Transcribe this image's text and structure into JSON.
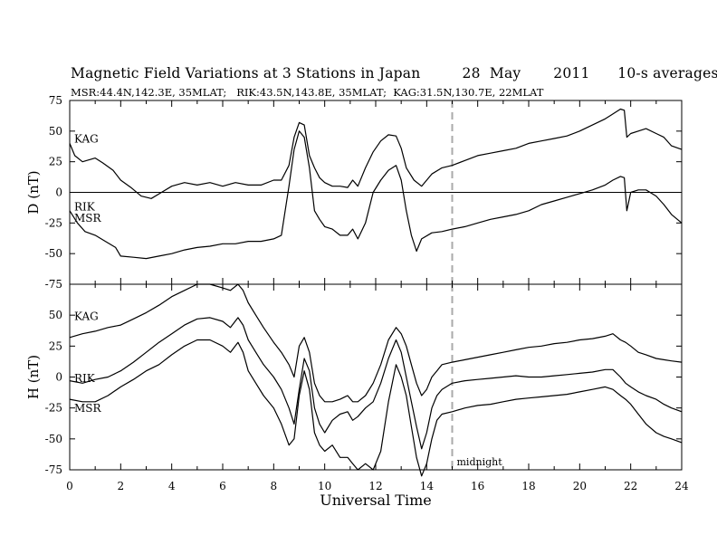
{
  "header": {
    "title": "Magnetic Field Variations at 3 Stations in Japan         28  May       2011      10-s averages",
    "subtitle": "MSR:44.4N,142.3E, 35MLAT;   RIK:43.5N,143.8E, 35MLAT;  KAG:31.5N,130.7E, 22MLAT"
  },
  "annotations": {
    "midnight": "midnight"
  },
  "chart_data": [
    {
      "type": "line",
      "panel": "D",
      "ylabel": "D (nT)",
      "xlabel": "",
      "xlim": [
        0,
        24
      ],
      "ylim": [
        -75,
        75
      ],
      "yticks": [
        75,
        50,
        25,
        0,
        -25,
        -50,
        -75
      ],
      "zero_line": true,
      "vertical_marker": {
        "x": 15,
        "style": "dashed",
        "color": "#aaaaaa",
        "label": "midnight"
      },
      "series": [
        {
          "name": "KAG",
          "x": [
            0,
            0.2,
            0.5,
            1,
            1.3,
            1.7,
            2,
            2.4,
            2.8,
            3.2,
            3.6,
            4,
            4.5,
            5,
            5.5,
            6,
            6.5,
            7,
            7.5,
            8,
            8.3,
            8.6,
            8.8,
            9,
            9.2,
            9.4,
            9.6,
            9.8,
            10,
            10.3,
            10.6,
            10.9,
            11.1,
            11.3,
            11.6,
            11.9,
            12.2,
            12.5,
            12.8,
            13,
            13.2,
            13.5,
            13.8,
            14.2,
            14.6,
            15,
            15.5,
            16,
            16.5,
            17,
            17.5,
            18,
            18.5,
            19,
            19.5,
            20,
            20.5,
            21,
            21.3,
            21.6,
            21.75,
            21.85,
            22,
            22.3,
            22.6,
            23,
            23.3,
            23.6,
            24
          ],
          "y": [
            40,
            30,
            25,
            28,
            24,
            18,
            10,
            4,
            -3,
            -5,
            0,
            5,
            8,
            6,
            8,
            5,
            8,
            6,
            6,
            10,
            10,
            22,
            45,
            57,
            55,
            30,
            20,
            12,
            8,
            5,
            5,
            4,
            10,
            5,
            20,
            33,
            42,
            47,
            46,
            36,
            20,
            10,
            5,
            15,
            20,
            22,
            26,
            30,
            32,
            34,
            36,
            40,
            42,
            44,
            46,
            50,
            55,
            60,
            64,
            68,
            67,
            45,
            48,
            50,
            52,
            48,
            45,
            38,
            35
          ]
        },
        {
          "name": "RIK",
          "x": [
            0,
            0.3,
            0.6,
            1,
            1.4,
            1.8,
            2,
            2.5,
            3,
            3.5,
            4,
            4.5,
            5,
            5.5,
            6,
            6.5,
            7,
            7.5,
            8,
            8.3,
            8.6,
            8.8,
            9,
            9.2,
            9.4,
            9.6,
            9.8,
            10,
            10.3,
            10.6,
            10.9,
            11.1,
            11.3,
            11.6,
            11.9,
            12.2,
            12.5,
            12.8,
            13,
            13.2,
            13.4,
            13.6,
            13.8,
            14.2,
            14.6,
            15,
            15.5,
            16,
            16.5,
            17,
            17.5,
            18,
            18.5,
            19,
            19.5,
            20,
            20.5,
            21,
            21.3,
            21.6,
            21.75,
            21.85,
            22,
            22.3,
            22.6,
            23,
            23.3,
            23.6,
            24
          ],
          "y": [
            -15,
            -25,
            -32,
            -35,
            -40,
            -45,
            -52,
            -53,
            -54,
            -52,
            -50,
            -47,
            -45,
            -44,
            -42,
            -42,
            -40,
            -40,
            -38,
            -35,
            5,
            35,
            50,
            45,
            20,
            -15,
            -22,
            -28,
            -30,
            -35,
            -35,
            -30,
            -38,
            -25,
            0,
            10,
            18,
            22,
            10,
            -15,
            -35,
            -48,
            -38,
            -33,
            -32,
            -30,
            -28,
            -25,
            -22,
            -20,
            -18,
            -15,
            -10,
            -7,
            -4,
            -1,
            2,
            6,
            10,
            13,
            12,
            -15,
            0,
            2,
            2,
            -3,
            -10,
            -18,
            -25
          ]
        }
      ]
    },
    {
      "type": "line",
      "panel": "H",
      "ylabel": "H (nT)",
      "xlabel": "Universal Time",
      "xlim": [
        0,
        24
      ],
      "xticks": [
        0,
        2,
        4,
        6,
        8,
        10,
        12,
        14,
        16,
        18,
        20,
        22,
        24
      ],
      "ylim": [
        -75,
        75
      ],
      "yticks": [
        75,
        50,
        25,
        0,
        -25,
        -50,
        -75
      ],
      "vertical_marker": {
        "x": 15,
        "style": "dashed",
        "color": "#aaaaaa",
        "label": "midnight"
      },
      "series": [
        {
          "name": "KAG",
          "x": [
            0,
            0.5,
            1,
            1.5,
            2,
            2.5,
            3,
            3.5,
            4,
            4.5,
            5,
            5.5,
            6,
            6.3,
            6.6,
            6.8,
            7,
            7.3,
            7.6,
            8,
            8.3,
            8.6,
            8.8,
            9,
            9.2,
            9.4,
            9.6,
            9.8,
            10,
            10.3,
            10.6,
            10.9,
            11.1,
            11.3,
            11.6,
            11.9,
            12.2,
            12.5,
            12.8,
            13,
            13.2,
            13.4,
            13.6,
            13.8,
            14,
            14.2,
            14.4,
            14.6,
            15,
            15.5,
            16,
            16.5,
            17,
            17.5,
            18,
            18.5,
            19,
            19.5,
            20,
            20.5,
            21,
            21.3,
            21.6,
            21.8,
            22,
            22.3,
            22.6,
            23,
            23.3,
            23.6,
            24
          ],
          "y": [
            32,
            35,
            37,
            40,
            42,
            47,
            52,
            58,
            65,
            70,
            75,
            75,
            72,
            70,
            75,
            70,
            60,
            50,
            40,
            28,
            20,
            10,
            0,
            25,
            32,
            20,
            -5,
            -15,
            -20,
            -20,
            -18,
            -15,
            -20,
            -20,
            -15,
            -5,
            10,
            30,
            40,
            35,
            25,
            10,
            -5,
            -15,
            -10,
            0,
            5,
            10,
            12,
            14,
            16,
            18,
            20,
            22,
            24,
            25,
            27,
            28,
            30,
            31,
            33,
            35,
            30,
            28,
            25,
            20,
            18,
            15,
            14,
            13,
            12
          ]
        },
        {
          "name": "RIK",
          "x": [
            0,
            0.5,
            1,
            1.5,
            2,
            2.5,
            3,
            3.5,
            4,
            4.5,
            5,
            5.5,
            6,
            6.3,
            6.6,
            6.8,
            7,
            7.3,
            7.6,
            8,
            8.3,
            8.6,
            8.8,
            9,
            9.2,
            9.4,
            9.6,
            9.8,
            10,
            10.3,
            10.6,
            10.9,
            11.1,
            11.3,
            11.6,
            11.9,
            12.2,
            12.5,
            12.8,
            13,
            13.2,
            13.4,
            13.6,
            13.8,
            14,
            14.2,
            14.4,
            14.6,
            15,
            15.5,
            16,
            16.5,
            17,
            17.5,
            18,
            18.5,
            19,
            19.5,
            20,
            20.5,
            21,
            21.3,
            21.6,
            21.8,
            22,
            22.3,
            22.6,
            23,
            23.3,
            23.6,
            24
          ],
          "y": [
            -3,
            -5,
            -2,
            0,
            5,
            12,
            20,
            28,
            35,
            42,
            47,
            48,
            45,
            40,
            48,
            42,
            30,
            20,
            10,
            0,
            -10,
            -25,
            -38,
            -10,
            15,
            5,
            -25,
            -38,
            -45,
            -35,
            -30,
            -28,
            -35,
            -32,
            -25,
            -20,
            -5,
            15,
            30,
            20,
            0,
            -20,
            -40,
            -58,
            -45,
            -25,
            -15,
            -10,
            -5,
            -3,
            -2,
            -1,
            0,
            1,
            0,
            0,
            1,
            2,
            3,
            4,
            6,
            6,
            0,
            -5,
            -8,
            -12,
            -15,
            -18,
            -22,
            -25,
            -28
          ]
        },
        {
          "name": "MSR",
          "x": [
            0,
            0.5,
            1,
            1.5,
            2,
            2.5,
            3,
            3.5,
            4,
            4.5,
            5,
            5.5,
            6,
            6.3,
            6.6,
            6.8,
            7,
            7.3,
            7.6,
            8,
            8.3,
            8.6,
            8.8,
            9,
            9.2,
            9.4,
            9.6,
            9.8,
            10,
            10.3,
            10.6,
            10.9,
            11.1,
            11.3,
            11.6,
            11.9,
            12.2,
            12.5,
            12.8,
            13,
            13.2,
            13.4,
            13.6,
            13.8,
            14,
            14.2,
            14.4,
            14.6,
            15,
            15.5,
            16,
            16.5,
            17,
            17.5,
            18,
            18.5,
            19,
            19.5,
            20,
            20.5,
            21,
            21.3,
            21.6,
            21.8,
            22,
            22.3,
            22.6,
            23,
            23.3,
            23.6,
            24
          ],
          "y": [
            -18,
            -20,
            -20,
            -15,
            -8,
            -2,
            5,
            10,
            18,
            25,
            30,
            30,
            25,
            20,
            28,
            20,
            5,
            -5,
            -15,
            -25,
            -38,
            -55,
            -50,
            -15,
            5,
            -10,
            -45,
            -55,
            -60,
            -55,
            -65,
            -65,
            -70,
            -75,
            -70,
            -75,
            -60,
            -20,
            10,
            0,
            -15,
            -40,
            -65,
            -80,
            -70,
            -50,
            -35,
            -30,
            -28,
            -25,
            -23,
            -22,
            -20,
            -18,
            -17,
            -16,
            -15,
            -14,
            -12,
            -10,
            -8,
            -10,
            -15,
            -18,
            -22,
            -30,
            -38,
            -45,
            -48,
            -50,
            -53
          ]
        }
      ]
    }
  ]
}
